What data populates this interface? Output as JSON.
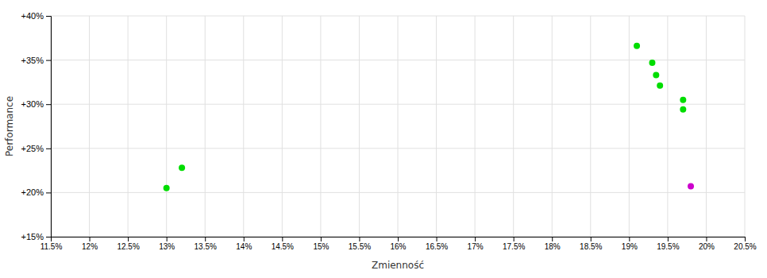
{
  "chart_data": {
    "type": "scatter",
    "xlabel": "Zmienność",
    "ylabel": "Performance",
    "xlim": [
      0.115,
      0.205
    ],
    "ylim": [
      0.15,
      0.4
    ],
    "xticks": [
      {
        "value": 0.115,
        "label": "11.5%"
      },
      {
        "value": 0.12,
        "label": "12%"
      },
      {
        "value": 0.125,
        "label": "12.5%"
      },
      {
        "value": 0.13,
        "label": "13%"
      },
      {
        "value": 0.135,
        "label": "13.5%"
      },
      {
        "value": 0.14,
        "label": "14%"
      },
      {
        "value": 0.145,
        "label": "14.5%"
      },
      {
        "value": 0.15,
        "label": "15%"
      },
      {
        "value": 0.155,
        "label": "15.5%"
      },
      {
        "value": 0.16,
        "label": "16%"
      },
      {
        "value": 0.165,
        "label": "16.5%"
      },
      {
        "value": 0.17,
        "label": "17%"
      },
      {
        "value": 0.175,
        "label": "17.5%"
      },
      {
        "value": 0.18,
        "label": "18%"
      },
      {
        "value": 0.185,
        "label": "18.5%"
      },
      {
        "value": 0.19,
        "label": "19%"
      },
      {
        "value": 0.195,
        "label": "19.5%"
      },
      {
        "value": 0.2,
        "label": "20%"
      },
      {
        "value": 0.205,
        "label": "20.5%"
      }
    ],
    "yticks": [
      {
        "value": 0.15,
        "label": "+15%"
      },
      {
        "value": 0.2,
        "label": "+20%"
      },
      {
        "value": 0.25,
        "label": "+25%"
      },
      {
        "value": 0.3,
        "label": "+30%"
      },
      {
        "value": 0.35,
        "label": "+35%"
      },
      {
        "value": 0.4,
        "label": "+40%"
      }
    ],
    "grid": true,
    "series": [
      {
        "color": "#00dd00",
        "x": [
          0.132,
          0.13,
          0.191,
          0.193,
          0.1935,
          0.194,
          0.197,
          0.197
        ],
        "values": [
          0.228,
          0.205,
          0.366,
          0.347,
          0.333,
          0.321,
          0.305,
          0.294
        ]
      },
      {
        "color": "#cc00cc",
        "x": [
          0.198
        ],
        "values": [
          0.207
        ]
      }
    ]
  }
}
